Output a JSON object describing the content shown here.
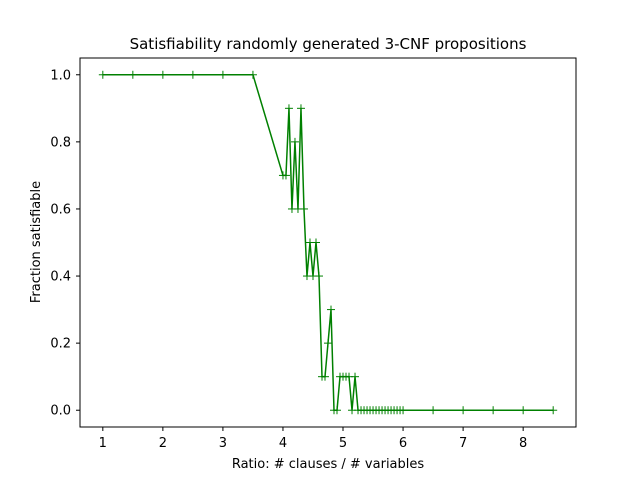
{
  "chart_data": {
    "type": "line",
    "title": "Satisfiability randomly generated 3-CNF propositions",
    "xlabel": "Ratio: # clauses / # variables",
    "ylabel": "Fraction satisfiable",
    "xlim": [
      0.62,
      8.88
    ],
    "ylim": [
      -0.05,
      1.05
    ],
    "xticks": [
      1,
      2,
      3,
      4,
      5,
      6,
      7,
      8
    ],
    "xtick_labels": [
      "1",
      "2",
      "3",
      "4",
      "5",
      "6",
      "7",
      "8"
    ],
    "yticks": [
      0.0,
      0.2,
      0.4,
      0.6,
      0.8,
      1.0
    ],
    "ytick_labels": [
      "0.0",
      "0.2",
      "0.4",
      "0.6",
      "0.8",
      "1.0"
    ],
    "grid": false,
    "marker": "+",
    "color": "#008000",
    "series": [
      {
        "x": [
          1.0,
          1.5,
          2.0,
          2.5,
          3.0,
          3.5,
          4.0,
          4.05,
          4.1,
          4.15,
          4.2,
          4.25,
          4.3,
          4.35,
          4.4,
          4.45,
          4.5,
          4.55,
          4.6,
          4.65,
          4.7,
          4.75,
          4.8,
          4.85,
          4.9,
          4.95,
          5.0,
          5.05,
          5.1,
          5.15,
          5.2,
          5.25,
          5.3,
          5.35,
          5.4,
          5.45,
          5.5,
          5.55,
          5.6,
          5.65,
          5.7,
          5.75,
          5.8,
          5.85,
          5.9,
          5.95,
          6.0,
          6.5,
          7.0,
          7.5,
          8.0,
          8.5
        ],
        "y": [
          1.0,
          1.0,
          1.0,
          1.0,
          1.0,
          1.0,
          0.7,
          0.7,
          0.9,
          0.6,
          0.8,
          0.6,
          0.9,
          0.6,
          0.4,
          0.5,
          0.4,
          0.5,
          0.4,
          0.1,
          0.1,
          0.2,
          0.3,
          0.0,
          0.0,
          0.1,
          0.1,
          0.1,
          0.1,
          0.0,
          0.1,
          0.0,
          0.0,
          0.0,
          0.0,
          0.0,
          0.0,
          0.0,
          0.0,
          0.0,
          0.0,
          0.0,
          0.0,
          0.0,
          0.0,
          0.0,
          0.0,
          0.0,
          0.0,
          0.0,
          0.0,
          0.0
        ]
      }
    ]
  }
}
